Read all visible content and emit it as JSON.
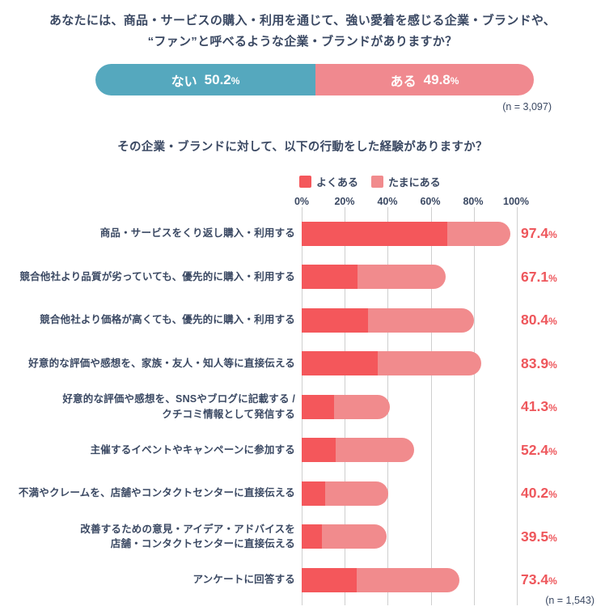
{
  "colors": {
    "text_navy": "#3B4963",
    "grid": "#cfcfcf",
    "pct_label": "#EE575C"
  },
  "chart_data": [
    {
      "type": "bar",
      "variant": "stacked-horizontal-pill",
      "title": "あなたには、商品・サービスの購入・利用を通じて、強い愛着を感じる企業・ブランドや、\n“ファン”と呼べるような企業・ブランドがありますか？",
      "segments": [
        {
          "label": "ない",
          "value": 50.2,
          "value_label": "50.2",
          "unit": "%",
          "color": "#55A8BE"
        },
        {
          "label": "ある",
          "value": 49.8,
          "value_label": "49.8",
          "unit": "%",
          "color": "#F0898F"
        }
      ],
      "xlim": [
        0,
        100
      ],
      "n_label": "(n = 3,097)"
    },
    {
      "type": "bar",
      "variant": "horizontal-stacked",
      "title": "その企業・ブランドに対して、以下の行動をした経験がありますか？",
      "legend": [
        {
          "label": "よくある",
          "color": "#F4575B"
        },
        {
          "label": "たまにある",
          "color": "#F18B8D"
        }
      ],
      "axis_ticks": [
        "0%",
        "20%",
        "40%",
        "60%",
        "80%",
        "100%"
      ],
      "xlim": [
        0,
        100
      ],
      "grid": true,
      "categories": [
        "商品・サービスをくり返し購入・利用する",
        "競合他社より品質が劣っていても、優先的に購入・利用する",
        "競合他社より価格が高くても、優先的に購入・利用する",
        "好意的な評価や感想を、家族・友人・知人等に直接伝える",
        "好意的な評価や感想を、SNSやブログに記載する /\nクチコミ情報として発信する",
        "主催するイベントやキャンペーンに参加する",
        "不満やクレームを、店舗やコンタクトセンターに直接伝える",
        "改善するための意見・アイデア・アドバイスを\n店舗・コンタクトセンターに直接伝える",
        "アンケートに回答する"
      ],
      "series": [
        {
          "name": "よくある",
          "values": [
            68,
            26,
            31,
            35.5,
            15,
            16,
            11,
            9.5,
            25.5
          ]
        },
        {
          "name": "たまにある",
          "values": [
            29.4,
            41.1,
            49.4,
            48.4,
            26.3,
            36.4,
            29.2,
            30,
            47.9
          ]
        }
      ],
      "totals": [
        97.4,
        67.1,
        80.4,
        83.9,
        41.3,
        52.4,
        40.2,
        39.5,
        73.4
      ],
      "total_labels": [
        "97.4",
        "67.1",
        "80.4",
        "83.9",
        "41.3",
        "52.4",
        "40.2",
        "39.5",
        "73.4"
      ],
      "unit": "%",
      "n_label": "(n = 1,543)"
    }
  ]
}
